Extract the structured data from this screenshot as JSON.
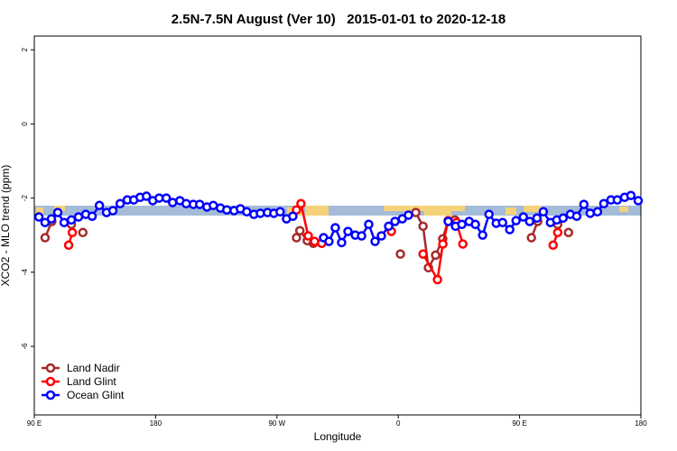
{
  "chart_data": {
    "type": "line",
    "title": "2.5N-7.5N August (Ver 10)   2015-01-01 to 2020-12-18",
    "xlabel": "Longitude",
    "ylabel": "XCO2 - MLO trend (ppm)",
    "xlim": [
      90,
      540
    ],
    "ylim": [
      -7.85,
      2.37
    ],
    "xticks": [
      {
        "value": 90,
        "label": "90 E"
      },
      {
        "value": 180,
        "label": "180"
      },
      {
        "value": 270,
        "label": "90 W"
      },
      {
        "value": 360,
        "label": "0"
      },
      {
        "value": 450,
        "label": "90 E"
      },
      {
        "value": 540,
        "label": "180"
      }
    ],
    "yticks": [
      2,
      0,
      -2,
      -4,
      -6
    ],
    "legend": "bottom-left",
    "series": [
      {
        "name": "Land Nadir",
        "color": "#a52a2a",
        "x": [
          98,
          103,
          null,
          117.5,
          null,
          126,
          null,
          284.5,
          287,
          292.5,
          297,
          null,
          361.6,
          null,
          373,
          378.4,
          382.4,
          387.7,
          393,
          397,
          402,
          null,
          458.8,
          463.5,
          null,
          478.3,
          null,
          486.3
        ],
        "values": [
          -3.07,
          -2.63,
          null,
          -2.71,
          null,
          -2.93,
          null,
          -3.07,
          -2.88,
          -3.15,
          -3.22,
          null,
          -3.51,
          null,
          -2.39,
          -2.76,
          -3.88,
          -3.54,
          -3.1,
          -2.61,
          -2.59,
          null,
          -3.07,
          -2.63,
          null,
          -2.71,
          null,
          -2.93
        ]
      },
      {
        "name": "Land Glint",
        "color": "#ff0000",
        "x": [
          115.5,
          118.2,
          null,
          284.5,
          287.8,
          293.2,
          297.9,
          303.2,
          null,
          354.9,
          null,
          378.4,
          389.1,
          393.1,
          397.1,
          403.2,
          407.9,
          null,
          474.9,
          478.3
        ],
        "values": [
          -3.27,
          -2.93,
          null,
          -2.32,
          -2.15,
          -3.02,
          -3.17,
          -3.22,
          null,
          -2.9,
          null,
          -3.51,
          -4.2,
          -3.24,
          -2.61,
          -2.66,
          -3.24,
          null,
          -3.27,
          -2.93
        ]
      },
      {
        "name": "Ocean Glint",
        "color": "#0000ff",
        "x": [
          93.4,
          98,
          102.7,
          107.4,
          112.1,
          117.5,
          122.8,
          128.2,
          132.9,
          138.3,
          143.6,
          148.3,
          153.7,
          159,
          163.8,
          168.5,
          173.2,
          177.9,
          182.6,
          187.9,
          192.6,
          198,
          202.7,
          208,
          212.7,
          218.1,
          222.8,
          228.1,
          232.8,
          238.2,
          242.9,
          247.6,
          252.9,
          257.7,
          263,
          267.7,
          272.4,
          277.1,
          281.8,
          null,
          304.6,
          308.6,
          313.3,
          318,
          322.7,
          328.1,
          332.8,
          338.1,
          342.8,
          347.5,
          352.9,
          357.6,
          363,
          367.6,
          null,
          397.1,
          402.5,
          407.2,
          412.6,
          417.2,
          422.6,
          427.3,
          432.7,
          437.4,
          442.7,
          447.4,
          452.8,
          457.5,
          462.9,
          467.6,
          472.9,
          477.6,
          482.3,
          487.7,
          492.4,
          497.7,
          502.4,
          507.8,
          512.5,
          517.8,
          522.5,
          527.9,
          532.6,
          538
        ],
        "values": [
          -2.51,
          -2.66,
          -2.56,
          -2.39,
          -2.66,
          -2.59,
          -2.51,
          -2.44,
          -2.49,
          -2.2,
          -2.39,
          -2.34,
          -2.15,
          -2.05,
          -2.05,
          -1.98,
          -1.95,
          -2.07,
          -2.0,
          -2.0,
          -2.12,
          -2.07,
          -2.15,
          -2.17,
          -2.17,
          -2.24,
          -2.2,
          -2.27,
          -2.32,
          -2.34,
          -2.29,
          -2.37,
          -2.44,
          -2.41,
          -2.39,
          -2.41,
          -2.37,
          -2.56,
          -2.49,
          null,
          -3.07,
          -3.17,
          -2.8,
          -3.2,
          -2.9,
          -3.0,
          -3.02,
          -2.71,
          -3.17,
          -3.02,
          -2.76,
          -2.63,
          -2.56,
          -2.46,
          null,
          -2.63,
          -2.76,
          -2.71,
          -2.63,
          -2.71,
          -3.0,
          -2.44,
          -2.68,
          -2.66,
          -2.85,
          -2.61,
          -2.51,
          -2.63,
          -2.54,
          -2.37,
          -2.66,
          -2.59,
          -2.54,
          -2.44,
          -2.49,
          -2.17,
          -2.41,
          -2.37,
          -2.15,
          -2.05,
          -2.05,
          -1.98,
          -1.93,
          -2.07
        ]
      }
    ]
  }
}
